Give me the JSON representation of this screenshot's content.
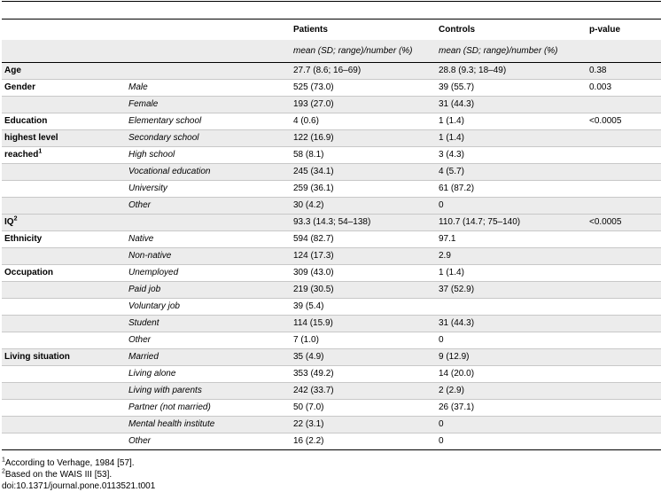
{
  "header": {
    "col_patients": "Patients",
    "col_controls": "Controls",
    "col_pvalue": "p-value",
    "sub_patients": "mean (SD; range)/number (%)",
    "sub_controls": "mean (SD; range)/number (%)"
  },
  "rows": [
    {
      "group": "Age",
      "sub": "",
      "patients": "27.7 (8.6; 16–69)",
      "controls": "28.8 (9.3; 18–49)",
      "p": "0.38"
    },
    {
      "group": "Gender",
      "sub": "Male",
      "patients": "525 (73.0)",
      "controls": "39 (55.7)",
      "p": "0.003"
    },
    {
      "group": "",
      "sub": "Female",
      "patients": "193 (27.0)",
      "controls": "31 (44.3)",
      "p": ""
    },
    {
      "group": "Education",
      "sub": "Elementary school",
      "patients": "4 (0.6)",
      "controls": "1 (1.4)",
      "p": "<0.0005"
    },
    {
      "group": "highest level",
      "sub": "Secondary school",
      "patients": "122 (16.9)",
      "controls": "1 (1.4)",
      "p": ""
    },
    {
      "group": "reached",
      "sup": "1",
      "sub": "High school",
      "patients": "58 (8.1)",
      "controls": "3 (4.3)",
      "p": ""
    },
    {
      "group": "",
      "sub": "Vocational education",
      "patients": "245 (34.1)",
      "controls": "4 (5.7)",
      "p": ""
    },
    {
      "group": "",
      "sub": "University",
      "patients": "259 (36.1)",
      "controls": "61 (87.2)",
      "p": ""
    },
    {
      "group": "",
      "sub": "Other",
      "patients": "30 (4.2)",
      "controls": "0",
      "p": ""
    },
    {
      "group": "IQ",
      "sup": "2",
      "sub": "",
      "patients": "93.3 (14.3; 54–138)",
      "controls": "110.7 (14.7; 75–140)",
      "p": "<0.0005"
    },
    {
      "group": "Ethnicity",
      "sub": "Native",
      "patients": "594 (82.7)",
      "controls": "97.1",
      "p": ""
    },
    {
      "group": "",
      "sub": "Non-native",
      "patients": "124 (17.3)",
      "controls": "2.9",
      "p": ""
    },
    {
      "group": "Occupation",
      "sub": "Unemployed",
      "patients": "309 (43.0)",
      "controls": "1 (1.4)",
      "p": ""
    },
    {
      "group": "",
      "sub": "Paid job",
      "patients": "219 (30.5)",
      "controls": "37 (52.9)",
      "p": ""
    },
    {
      "group": "",
      "sub": "Voluntary job",
      "patients": "39 (5.4)",
      "controls": "",
      "p": ""
    },
    {
      "group": "",
      "sub": "Student",
      "patients": "114 (15.9)",
      "controls": "31 (44.3)",
      "p": ""
    },
    {
      "group": "",
      "sub": "Other",
      "patients": "7 (1.0)",
      "controls": "0",
      "p": ""
    },
    {
      "group": "Living situation",
      "sub": "Married",
      "patients": "35 (4.9)",
      "controls": "9 (12.9)",
      "p": ""
    },
    {
      "group": "",
      "sub": "Living alone",
      "patients": "353 (49.2)",
      "controls": "14 (20.0)",
      "p": ""
    },
    {
      "group": "",
      "sub": "Living with parents",
      "patients": "242 (33.7)",
      "controls": "2 (2.9)",
      "p": ""
    },
    {
      "group": "",
      "sub": "Partner (not married)",
      "patients": "50 (7.0)",
      "controls": "26 (37.1)",
      "p": ""
    },
    {
      "group": "",
      "sub": "Mental health institute",
      "patients": "22 (3.1)",
      "controls": "0",
      "p": ""
    },
    {
      "group": "",
      "sub": "Other",
      "patients": "16 (2.2)",
      "controls": "0",
      "p": ""
    }
  ],
  "footnotes": {
    "fn1_mark": "1",
    "fn1_text": "According to Verhage, 1984 [57].",
    "fn2_mark": "2",
    "fn2_text": "Based on the WAIS III [53].",
    "doi": "doi:10.1371/journal.pone.0113521.t001"
  }
}
